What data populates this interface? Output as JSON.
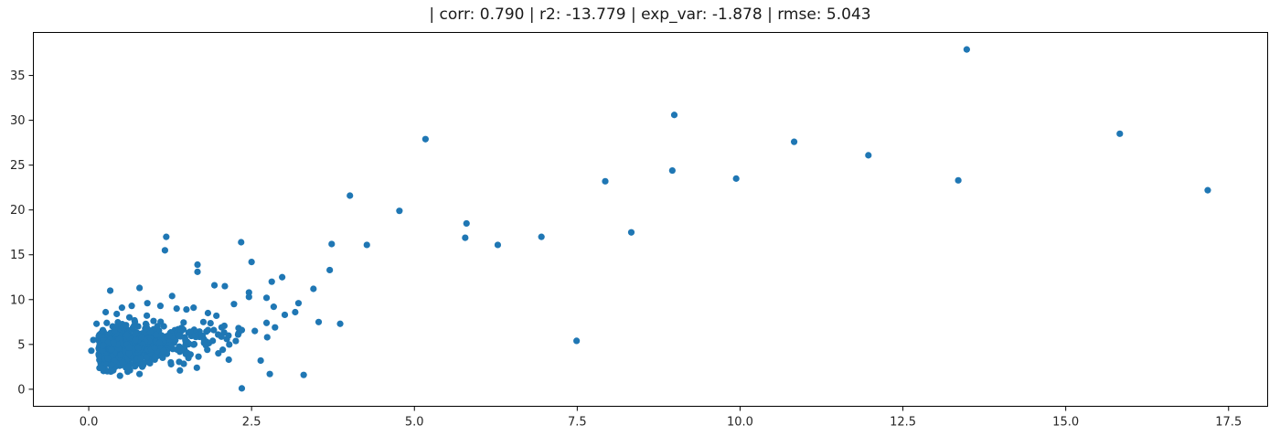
{
  "chart_data": {
    "type": "scatter",
    "title": "| corr: 0.790 | r2: -13.779 | exp_var: -1.878 | rmse: 5.043",
    "xlabel": "",
    "ylabel": "",
    "xlim": [
      -0.85,
      18.1
    ],
    "ylim": [
      -1.9,
      39.8
    ],
    "xticks": [
      0.0,
      2.5,
      5.0,
      7.5,
      10.0,
      12.5,
      15.0,
      17.5
    ],
    "xtick_labels": [
      "0.0",
      "2.5",
      "5.0",
      "7.5",
      "10.0",
      "12.5",
      "15.0",
      "17.5"
    ],
    "yticks": [
      0,
      5,
      10,
      15,
      20,
      25,
      30,
      35
    ],
    "ytick_labels": [
      "0",
      "5",
      "10",
      "15",
      "20",
      "25",
      "30",
      "35"
    ],
    "grid": false,
    "marker_color": "#1f77b4",
    "series": [
      {
        "points": [
          [
            13.48,
            37.9
          ],
          [
            8.99,
            30.6
          ],
          [
            15.83,
            28.5
          ],
          [
            5.17,
            27.9
          ],
          [
            10.83,
            27.6
          ],
          [
            11.97,
            26.1
          ],
          [
            8.96,
            24.4
          ],
          [
            9.94,
            23.5
          ],
          [
            13.35,
            23.3
          ],
          [
            7.93,
            23.2
          ],
          [
            17.18,
            22.2
          ],
          [
            4.01,
            21.6
          ],
          [
            4.77,
            19.9
          ],
          [
            5.8,
            18.5
          ],
          [
            8.33,
            17.5
          ],
          [
            6.95,
            17.0
          ],
          [
            5.78,
            16.9
          ],
          [
            1.19,
            17.0
          ],
          [
            2.34,
            16.4
          ],
          [
            3.73,
            16.2
          ],
          [
            6.28,
            16.1
          ],
          [
            4.27,
            16.1
          ],
          [
            1.17,
            15.5
          ],
          [
            2.5,
            14.2
          ],
          [
            1.67,
            13.9
          ],
          [
            1.67,
            13.1
          ],
          [
            3.7,
            13.3
          ],
          [
            2.97,
            12.5
          ],
          [
            2.81,
            12.0
          ],
          [
            1.93,
            11.6
          ],
          [
            2.09,
            11.5
          ],
          [
            3.45,
            11.2
          ],
          [
            0.78,
            11.3
          ],
          [
            0.33,
            11.0
          ],
          [
            2.46,
            10.8
          ],
          [
            2.46,
            10.3
          ],
          [
            2.73,
            10.2
          ],
          [
            1.28,
            10.4
          ],
          [
            3.22,
            9.6
          ],
          [
            2.23,
            9.5
          ],
          [
            2.84,
            9.2
          ],
          [
            3.17,
            8.6
          ],
          [
            3.01,
            8.3
          ],
          [
            2.73,
            7.4
          ],
          [
            3.53,
            7.5
          ],
          [
            3.86,
            7.3
          ],
          [
            2.86,
            6.9
          ],
          [
            2.35,
            6.6
          ],
          [
            2.55,
            6.5
          ],
          [
            2.04,
            6.9
          ],
          [
            2.74,
            5.8
          ],
          [
            7.49,
            5.4
          ],
          [
            2.64,
            3.2
          ],
          [
            2.15,
            3.3
          ],
          [
            2.78,
            1.7
          ],
          [
            3.3,
            1.6
          ],
          [
            2.35,
            0.1
          ],
          [
            1.66,
            2.4
          ],
          [
            1.4,
            2.1
          ],
          [
            0.61,
            2.5
          ],
          [
            0.78,
            1.7
          ],
          [
            0.48,
            1.5
          ],
          [
            0.16,
            3.7
          ],
          [
            0.22,
            4.9
          ],
          [
            0.07,
            5.5
          ],
          [
            0.12,
            7.3
          ],
          [
            0.26,
            8.6
          ],
          [
            0.51,
            9.1
          ],
          [
            1.61,
            9.1
          ],
          [
            1.83,
            8.5
          ],
          [
            1.96,
            8.2
          ],
          [
            1.5,
            8.9
          ],
          [
            1.92,
            6.6
          ],
          [
            2.12,
            5.6
          ],
          [
            1.82,
            4.4
          ],
          [
            1.99,
            4.0
          ],
          [
            1.26,
            3.0
          ],
          [
            0.94,
            2.9
          ],
          [
            0.04,
            4.3
          ],
          [
            0.35,
            2.7
          ],
          [
            0.9,
            9.6
          ],
          [
            1.1,
            9.3
          ],
          [
            1.35,
            9.0
          ],
          [
            0.66,
            9.3
          ],
          [
            0.43,
            8.4
          ],
          [
            1.76,
            7.5
          ]
        ]
      }
    ],
    "cluster": {
      "x_range": [
        0.15,
        1.9
      ],
      "y_center": 4.8,
      "count": 900
    }
  }
}
